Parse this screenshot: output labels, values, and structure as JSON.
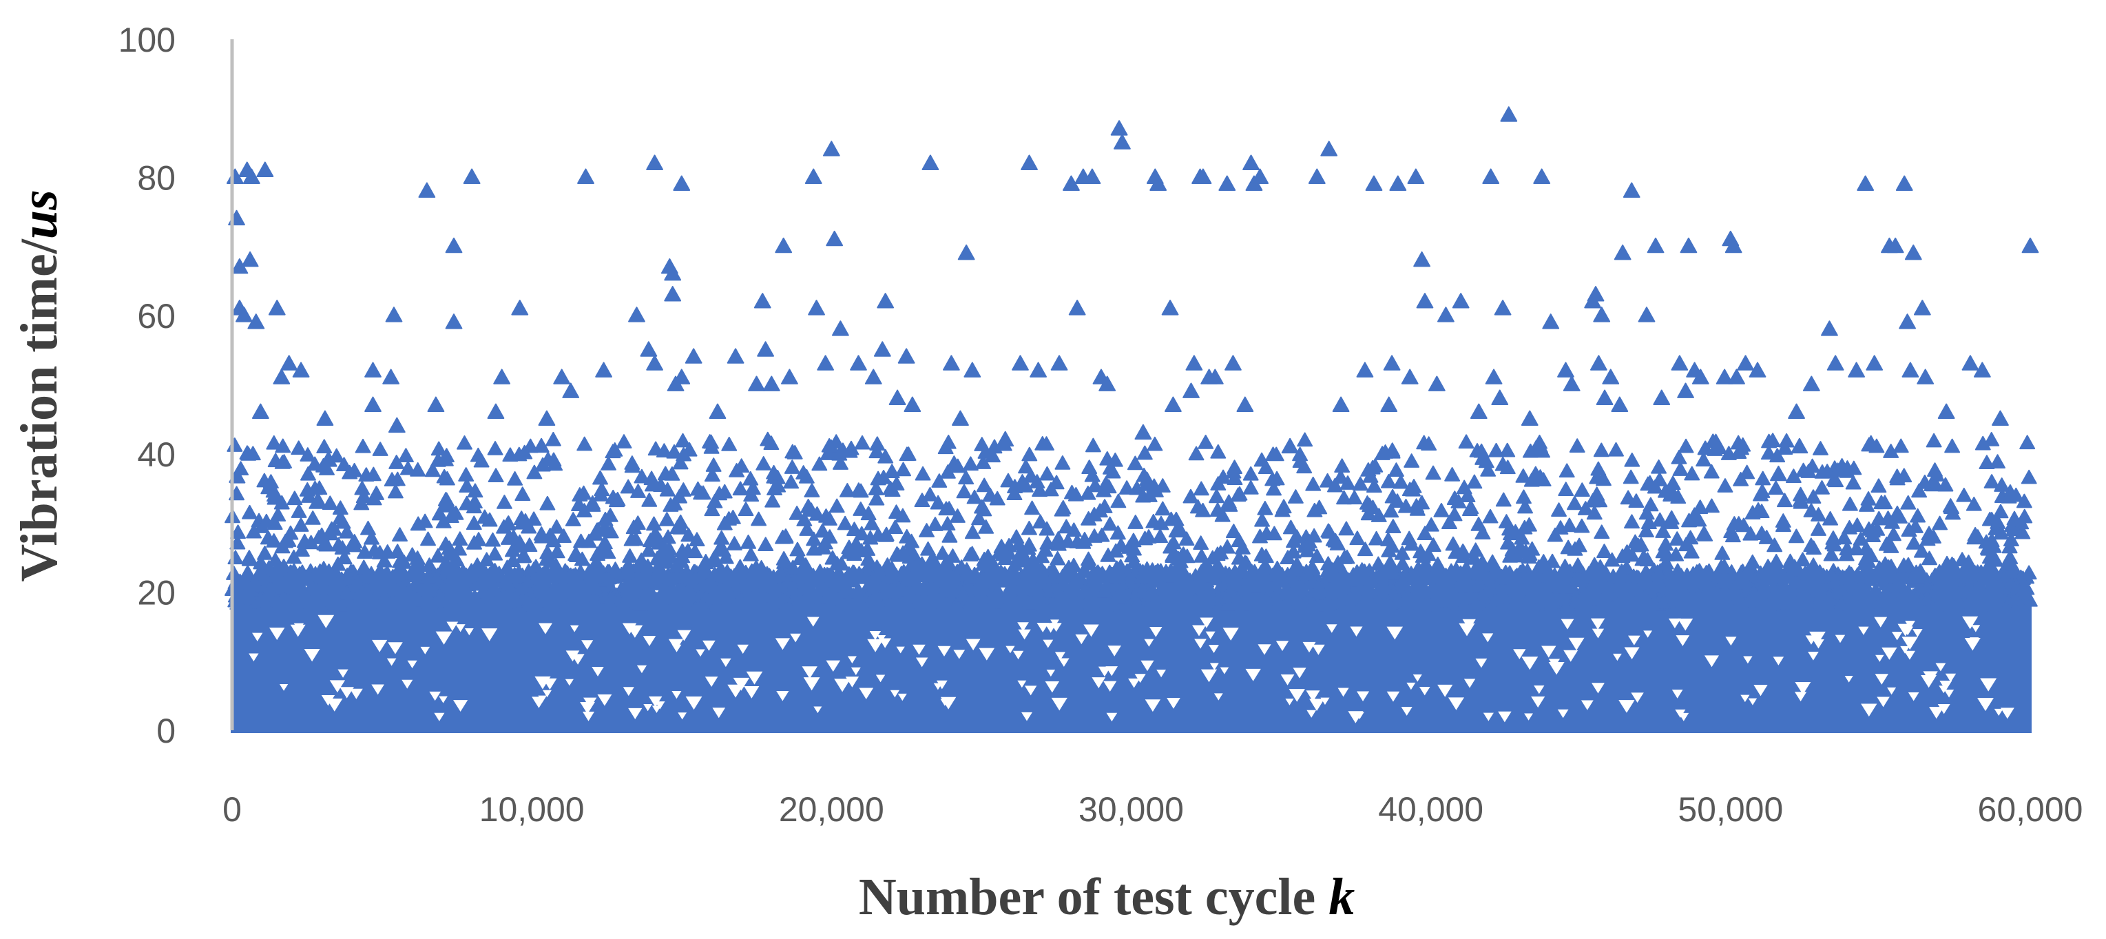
{
  "chart_data": {
    "type": "scatter",
    "title": "",
    "xlabel": "Number of test cycle",
    "xlabel_var": "k",
    "ylabel": "Vibration time/",
    "ylabel_var": "us",
    "xlim": [
      0,
      60000
    ],
    "ylim": [
      0,
      100
    ],
    "xticks": [
      "0",
      "10,000",
      "20,000",
      "30,000",
      "40,000",
      "50,000",
      "60,000"
    ],
    "yticks": [
      "0",
      "20",
      "40",
      "60",
      "80",
      "100"
    ],
    "grid": false,
    "legend": "none",
    "marker": "triangle",
    "color": "#4472C4",
    "series": [
      {
        "points": [
          [
            100,
            80
          ],
          [
            150,
            74
          ],
          [
            250,
            67
          ],
          [
            250,
            61
          ],
          [
            400,
            60
          ],
          [
            500,
            81
          ],
          [
            600,
            68
          ],
          [
            650,
            80
          ],
          [
            800,
            59
          ],
          [
            950,
            46
          ],
          [
            1100,
            81
          ],
          [
            1500,
            61
          ],
          [
            1650,
            51
          ],
          [
            1900,
            53
          ],
          [
            2300,
            52
          ],
          [
            3100,
            45
          ],
          [
            4700,
            52
          ],
          [
            4700,
            47
          ],
          [
            5300,
            51
          ],
          [
            5400,
            60
          ],
          [
            5500,
            44
          ],
          [
            6500,
            78
          ],
          [
            6800,
            47
          ],
          [
            7400,
            70
          ],
          [
            7400,
            59
          ],
          [
            8000,
            80
          ],
          [
            8800,
            46
          ],
          [
            9000,
            51
          ],
          [
            9600,
            61
          ],
          [
            10500,
            45
          ],
          [
            11000,
            51
          ],
          [
            11300,
            49
          ],
          [
            11800,
            80
          ],
          [
            12400,
            52
          ],
          [
            13500,
            60
          ],
          [
            13900,
            55
          ],
          [
            14100,
            53
          ],
          [
            14100,
            82
          ],
          [
            14600,
            67
          ],
          [
            14700,
            66
          ],
          [
            14700,
            63
          ],
          [
            14800,
            50
          ],
          [
            15000,
            51
          ],
          [
            15000,
            79
          ],
          [
            15400,
            54
          ],
          [
            16200,
            46
          ],
          [
            16800,
            54
          ],
          [
            17500,
            50
          ],
          [
            17700,
            62
          ],
          [
            17800,
            55
          ],
          [
            18000,
            50
          ],
          [
            18400,
            70
          ],
          [
            18600,
            51
          ],
          [
            19400,
            80
          ],
          [
            19500,
            61
          ],
          [
            19800,
            53
          ],
          [
            20000,
            84
          ],
          [
            20100,
            71
          ],
          [
            20300,
            58
          ],
          [
            20900,
            53
          ],
          [
            21400,
            51
          ],
          [
            21700,
            55
          ],
          [
            21800,
            62
          ],
          [
            22200,
            48
          ],
          [
            22500,
            54
          ],
          [
            22700,
            47
          ],
          [
            23300,
            82
          ],
          [
            24000,
            53
          ],
          [
            24300,
            45
          ],
          [
            24500,
            69
          ],
          [
            24700,
            52
          ],
          [
            25800,
            42
          ],
          [
            26300,
            53
          ],
          [
            26600,
            82
          ],
          [
            26900,
            52
          ],
          [
            27600,
            53
          ],
          [
            28000,
            79
          ],
          [
            28200,
            61
          ],
          [
            28400,
            80
          ],
          [
            28700,
            80
          ],
          [
            29000,
            51
          ],
          [
            29200,
            50
          ],
          [
            29600,
            87
          ],
          [
            29700,
            85
          ],
          [
            30400,
            43
          ],
          [
            30800,
            80
          ],
          [
            30900,
            79
          ],
          [
            31300,
            61
          ],
          [
            31400,
            47
          ],
          [
            32000,
            49
          ],
          [
            32100,
            53
          ],
          [
            32300,
            80
          ],
          [
            32400,
            80
          ],
          [
            32600,
            51
          ],
          [
            32800,
            51
          ],
          [
            33200,
            79
          ],
          [
            33400,
            53
          ],
          [
            33800,
            47
          ],
          [
            34000,
            82
          ],
          [
            34100,
            79
          ],
          [
            34300,
            80
          ],
          [
            35300,
            41
          ],
          [
            36200,
            80
          ],
          [
            36600,
            84
          ],
          [
            37000,
            47
          ],
          [
            37800,
            52
          ],
          [
            38100,
            79
          ],
          [
            38600,
            47
          ],
          [
            38700,
            53
          ],
          [
            38900,
            79
          ],
          [
            39300,
            51
          ],
          [
            39500,
            80
          ],
          [
            39700,
            68
          ],
          [
            39800,
            62
          ],
          [
            40200,
            50
          ],
          [
            40500,
            60
          ],
          [
            41000,
            62
          ],
          [
            41600,
            46
          ],
          [
            42000,
            80
          ],
          [
            42100,
            51
          ],
          [
            42300,
            48
          ],
          [
            42400,
            61
          ],
          [
            42600,
            89
          ],
          [
            43300,
            45
          ],
          [
            43700,
            80
          ],
          [
            44000,
            59
          ],
          [
            44500,
            52
          ],
          [
            44700,
            50
          ],
          [
            45400,
            62
          ],
          [
            45500,
            63
          ],
          [
            45600,
            53
          ],
          [
            45700,
            60
          ],
          [
            45800,
            48
          ],
          [
            46000,
            51
          ],
          [
            46300,
            47
          ],
          [
            46400,
            69
          ],
          [
            46700,
            78
          ],
          [
            47200,
            60
          ],
          [
            47500,
            70
          ],
          [
            47700,
            48
          ],
          [
            48300,
            53
          ],
          [
            48500,
            49
          ],
          [
            48600,
            70
          ],
          [
            48800,
            52
          ],
          [
            49000,
            51
          ],
          [
            49800,
            51
          ],
          [
            50000,
            71
          ],
          [
            50100,
            70
          ],
          [
            50200,
            51
          ],
          [
            50500,
            53
          ],
          [
            50900,
            52
          ],
          [
            51600,
            37
          ],
          [
            52200,
            46
          ],
          [
            52300,
            41
          ],
          [
            52700,
            50
          ],
          [
            53300,
            58
          ],
          [
            53500,
            53
          ],
          [
            54200,
            52
          ],
          [
            54500,
            79
          ],
          [
            54800,
            53
          ],
          [
            55300,
            70
          ],
          [
            55500,
            70
          ],
          [
            55800,
            79
          ],
          [
            55900,
            59
          ],
          [
            56000,
            52
          ],
          [
            56100,
            69
          ],
          [
            56400,
            61
          ],
          [
            56500,
            51
          ],
          [
            57200,
            46
          ],
          [
            58000,
            53
          ],
          [
            58400,
            52
          ],
          [
            59000,
            45
          ],
          [
            60000,
            70
          ]
        ],
        "dense_band": {
          "x_range": [
            0,
            60000
          ],
          "y_range": [
            0,
            22
          ],
          "note": "thousands of points densely filling 0–22 us across all cycles"
        },
        "mid_band": {
          "x_range": [
            0,
            60000
          ],
          "y_range": [
            22,
            42
          ],
          "note": "many scattered points between 22 and 42 us across all cycles"
        }
      }
    ]
  }
}
